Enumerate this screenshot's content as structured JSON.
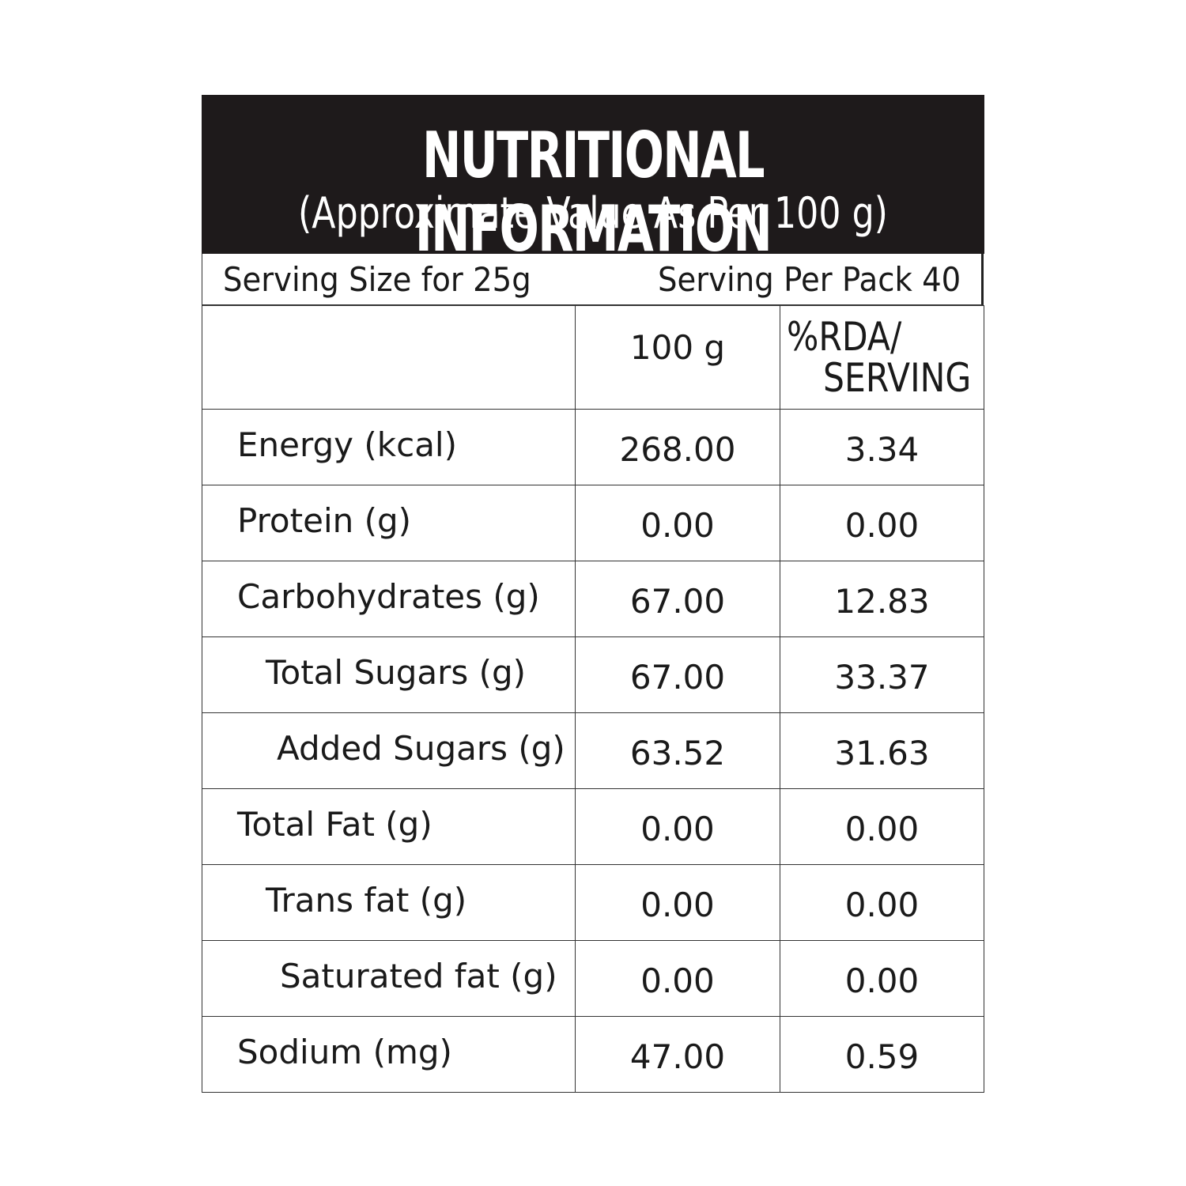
{
  "header": {
    "title": "NUTRITIONAL INFORMATION",
    "subtitle": "(Approximate Value As Per 100 g)"
  },
  "serving": {
    "size": "Serving Size for 25g",
    "per_pack": "Serving Per Pack 40"
  },
  "table": {
    "columns": {
      "per_100g": "100 g",
      "rda_per_serving": [
        "%RDA/",
        "SERVING"
      ]
    },
    "rows": [
      [
        "Energy (kcal)",
        "268.00",
        "3.34"
      ],
      [
        "Protein (g)",
        "0.00",
        "0.00"
      ],
      [
        "Carbohydrates (g)",
        "67.00",
        "12.83"
      ],
      [
        "Total Sugars (g)",
        "67.00",
        "33.37"
      ],
      [
        "Added Sugars (g)",
        "63.52",
        "31.63"
      ],
      [
        "Total Fat (g)",
        "0.00",
        "0.00"
      ],
      [
        "Trans fat (g)",
        "0.00",
        "0.00"
      ],
      [
        "Saturated fat (g)",
        "0.00",
        "0.00"
      ],
      [
        "Sodium (mg)",
        "47.00",
        "0.59"
      ]
    ]
  }
}
